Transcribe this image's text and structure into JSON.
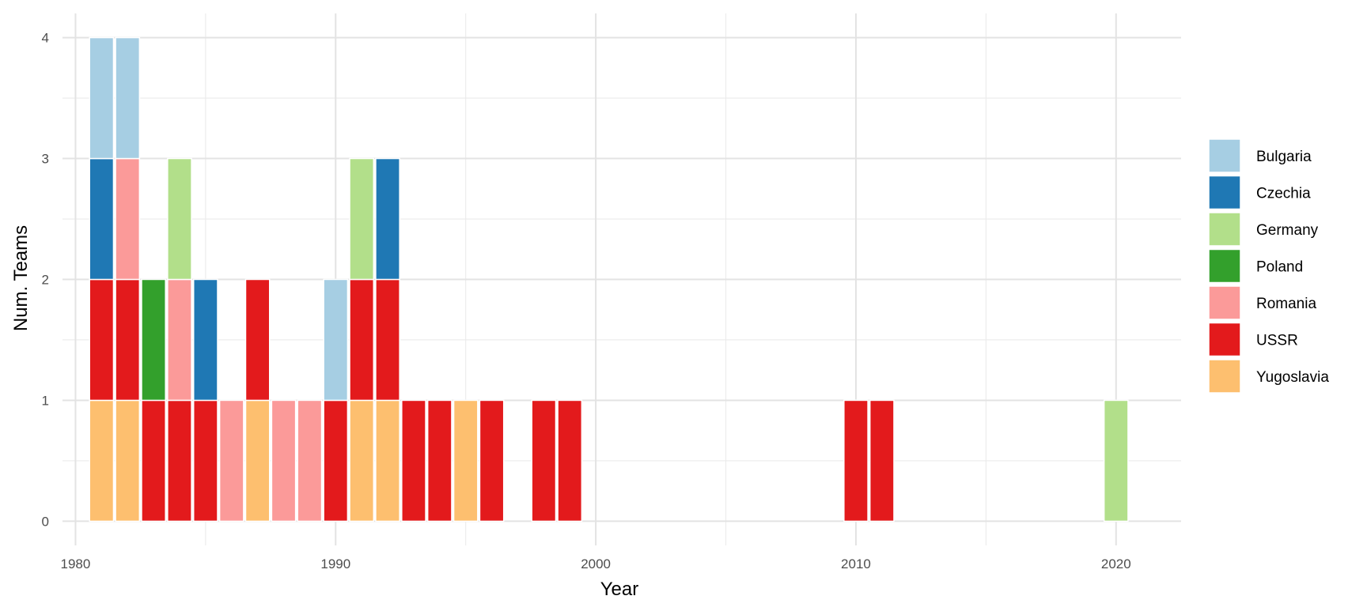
{
  "chart_data": {
    "type": "bar",
    "stacked": true,
    "xlabel": "Year",
    "ylabel": "Num. Teams",
    "xlim": [
      1979.5,
      2022.5
    ],
    "ylim": [
      -0.2,
      4.2
    ],
    "x_ticks": [
      1980,
      1990,
      2000,
      2010,
      2020
    ],
    "x_tick_labels": [
      "1980",
      "1990",
      "2000",
      "2010",
      "2020"
    ],
    "y_ticks": [
      0,
      1,
      2,
      3,
      4
    ],
    "y_tick_labels": [
      "0",
      "1",
      "2",
      "3",
      "4"
    ],
    "grid": true,
    "legend_position": "right",
    "stack_order": [
      "Yugoslavia",
      "USSR",
      "Romania",
      "Poland",
      "Germany",
      "Czechia",
      "Bulgaria"
    ],
    "series": [
      {
        "name": "Bulgaria",
        "color": "#A6CEE3",
        "points": [
          [
            1981,
            1
          ],
          [
            1982,
            1
          ],
          [
            1990,
            1
          ]
        ]
      },
      {
        "name": "Czechia",
        "color": "#1F78B4",
        "points": [
          [
            1981,
            1
          ],
          [
            1985,
            1
          ],
          [
            1992,
            1
          ]
        ]
      },
      {
        "name": "Germany",
        "color": "#B2DF8A",
        "points": [
          [
            1984,
            1
          ],
          [
            1991,
            1
          ],
          [
            2020,
            1
          ]
        ]
      },
      {
        "name": "Poland",
        "color": "#33A02C",
        "points": [
          [
            1983,
            1
          ]
        ]
      },
      {
        "name": "Romania",
        "color": "#FB9A99",
        "points": [
          [
            1982,
            1
          ],
          [
            1984,
            1
          ],
          [
            1986,
            1
          ],
          [
            1988,
            1
          ],
          [
            1989,
            1
          ]
        ]
      },
      {
        "name": "USSR",
        "color": "#E31A1C",
        "points": [
          [
            1981,
            1
          ],
          [
            1982,
            1
          ],
          [
            1983,
            1
          ],
          [
            1984,
            1
          ],
          [
            1985,
            1
          ],
          [
            1987,
            1
          ],
          [
            1990,
            1
          ],
          [
            1991,
            1
          ],
          [
            1992,
            1
          ],
          [
            1993,
            1
          ],
          [
            1994,
            1
          ],
          [
            1996,
            1
          ],
          [
            1998,
            1
          ],
          [
            1999,
            1
          ],
          [
            2010,
            1
          ],
          [
            2011,
            1
          ]
        ]
      },
      {
        "name": "Yugoslavia",
        "color": "#FDBF6F",
        "points": [
          [
            1981,
            1
          ],
          [
            1982,
            1
          ],
          [
            1987,
            1
          ],
          [
            1991,
            1
          ],
          [
            1992,
            1
          ],
          [
            1995,
            1
          ]
        ]
      }
    ]
  }
}
